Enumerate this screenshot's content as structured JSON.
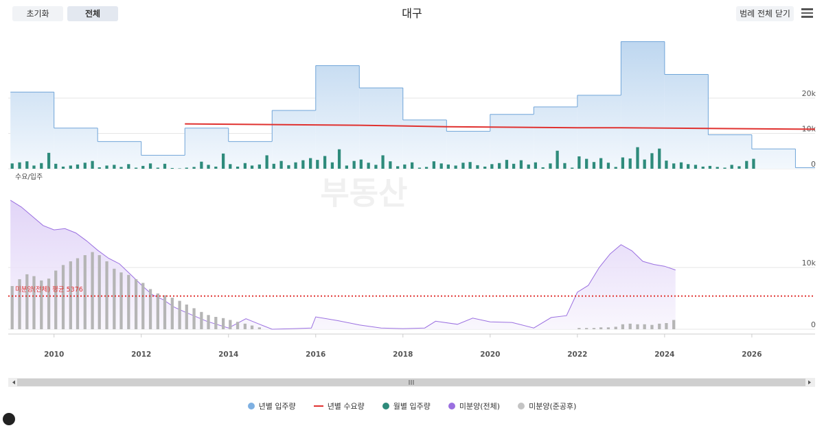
{
  "header": {
    "buttons": [
      "초기화",
      "전체"
    ],
    "legend_toggle": "범례 전체 닫기",
    "watermark": "부동산"
  },
  "chart_data": [
    {
      "type": "combo",
      "title": "대구",
      "ylabel": "수요/입주",
      "xlim": [
        2008.95,
        2027.45
      ],
      "ylim": [
        0,
        40000
      ],
      "yticks": [
        0,
        {
          "value": 10000,
          "label": "10k"
        },
        {
          "value": 20000,
          "label": "20k"
        }
      ],
      "grid": true,
      "series": [
        {
          "name": "년별 입주량",
          "type": "step-area",
          "color": "#6fa4d8",
          "x": [
            2009,
            2010,
            2011,
            2012,
            2013,
            2014,
            2015,
            2016,
            2017,
            2018,
            2019,
            2020,
            2021,
            2022,
            2023,
            2024,
            2025,
            2026,
            2027
          ],
          "values": [
            21700,
            11500,
            7700,
            3800,
            11500,
            7700,
            16500,
            29200,
            22900,
            13800,
            10600,
            15400,
            17500,
            20800,
            36000,
            26700,
            9600,
            5600,
            300
          ]
        },
        {
          "name": "년별 수요량",
          "type": "line",
          "color": "#e0312f",
          "x": [
            2013,
            2014,
            2015,
            2016,
            2017,
            2018,
            2019,
            2020,
            2021,
            2022,
            2023,
            2024,
            2025,
            2026,
            2027.45
          ],
          "values": [
            12700,
            12600,
            12500,
            12400,
            12300,
            12100,
            11900,
            11800,
            11700,
            11600,
            11600,
            11500,
            11400,
            11300,
            11200
          ]
        },
        {
          "name": "월별 입주량",
          "type": "bar",
          "color": "#2e8b7b",
          "x": [
            2009.04,
            2009.21,
            2009.38,
            2009.54,
            2009.71,
            2009.88,
            2010.04,
            2010.21,
            2010.38,
            2010.54,
            2010.71,
            2010.88,
            2011.04,
            2011.21,
            2011.38,
            2011.54,
            2011.71,
            2011.88,
            2012.04,
            2012.21,
            2012.38,
            2012.54,
            2012.71,
            2012.88,
            2013.04,
            2013.21,
            2013.38,
            2013.54,
            2013.71,
            2013.88,
            2014.04,
            2014.21,
            2014.38,
            2014.54,
            2014.71,
            2014.88,
            2015.04,
            2015.21,
            2015.38,
            2015.54,
            2015.71,
            2015.88,
            2016.04,
            2016.21,
            2016.38,
            2016.54,
            2016.71,
            2016.88,
            2017.04,
            2017.21,
            2017.38,
            2017.54,
            2017.71,
            2017.88,
            2018.04,
            2018.21,
            2018.38,
            2018.54,
            2018.71,
            2018.88,
            2019.04,
            2019.21,
            2019.38,
            2019.54,
            2019.71,
            2019.88,
            2020.04,
            2020.21,
            2020.38,
            2020.54,
            2020.71,
            2020.88,
            2021.04,
            2021.21,
            2021.38,
            2021.54,
            2021.71,
            2021.88,
            2022.04,
            2022.21,
            2022.38,
            2022.54,
            2022.71,
            2022.88,
            2023.04,
            2023.21,
            2023.38,
            2023.54,
            2023.71,
            2023.88,
            2024.04,
            2024.21,
            2024.38,
            2024.54,
            2024.71,
            2024.88,
            2025.04,
            2025.21,
            2025.38,
            2025.54,
            2025.71,
            2025.88,
            2026.04
          ],
          "values": [
            1500,
            1800,
            2100,
            900,
            1600,
            4500,
            1400,
            600,
            900,
            1200,
            1700,
            2200,
            400,
            900,
            1100,
            500,
            1300,
            300,
            800,
            1500,
            300,
            1400,
            200,
            100,
            300,
            500,
            2000,
            1100,
            600,
            4300,
            1300,
            600,
            1600,
            900,
            1200,
            3800,
            1400,
            2200,
            1000,
            1800,
            2400,
            3000,
            2500,
            3600,
            1800,
            5500,
            900,
            2200,
            2600,
            1700,
            1100,
            3800,
            2100,
            700,
            1200,
            1800,
            300,
            500,
            2100,
            1500,
            1200,
            900,
            1700,
            1900,
            1000,
            600,
            1300,
            1600,
            2500,
            1400,
            2400,
            1200,
            1800,
            400,
            1500,
            5100,
            1600,
            300,
            3500,
            2800,
            1900,
            3000,
            1700,
            500,
            3200,
            2900,
            6100,
            2600,
            4400,
            5700,
            2300,
            1500,
            1800,
            1300,
            1100,
            600,
            800,
            500,
            300,
            1100,
            700,
            2200,
            2800
          ]
        }
      ]
    },
    {
      "type": "combo",
      "xlim": [
        2008.95,
        2027.45
      ],
      "ylim": [
        0,
        21000
      ],
      "xticks": [
        2010,
        2012,
        2014,
        2016,
        2018,
        2020,
        2022,
        2024,
        2026
      ],
      "yticks": [
        0,
        {
          "value": 10000,
          "label": "10k"
        }
      ],
      "grid": true,
      "average": {
        "value": 5376,
        "label": "미분양(전체) 평균 5376",
        "color": "#e0312f"
      },
      "series": [
        {
          "name": "미분양(전체)",
          "type": "area",
          "color": "#9a6fe0",
          "x": [
            2009.0,
            2009.25,
            2009.5,
            2009.75,
            2010.0,
            2010.25,
            2010.5,
            2010.75,
            2011.0,
            2011.25,
            2011.5,
            2011.75,
            2012.0,
            2012.25,
            2012.5,
            2012.75,
            2013.0,
            2013.5,
            2014.0,
            2014.4,
            2014.75,
            2015.0,
            2015.5,
            2015.9,
            2016.0,
            2016.5,
            2017.0,
            2017.5,
            2018.0,
            2018.5,
            2018.75,
            2019.25,
            2019.6,
            2020.0,
            2020.5,
            2021.0,
            2021.4,
            2021.75,
            2022.0,
            2022.25,
            2022.5,
            2022.75,
            2023.0,
            2023.25,
            2023.5,
            2023.75,
            2024.0,
            2024.25
          ],
          "values": [
            20900,
            19800,
            18300,
            16800,
            16100,
            16300,
            15600,
            14300,
            12800,
            11500,
            10600,
            8900,
            7200,
            5600,
            4800,
            3600,
            2800,
            1300,
            200,
            1700,
            700,
            0,
            100,
            200,
            2000,
            1400,
            700,
            200,
            100,
            200,
            1300,
            800,
            1800,
            1200,
            1100,
            200,
            1900,
            2200,
            6000,
            7100,
            10000,
            12200,
            13700,
            12700,
            11000,
            10500,
            10200,
            9600
          ]
        },
        {
          "name": "미분양(준공후)",
          "type": "bar",
          "color": "#b5b5b5",
          "x": [
            2009.04,
            2009.21,
            2009.38,
            2009.54,
            2009.71,
            2009.88,
            2010.04,
            2010.21,
            2010.38,
            2010.54,
            2010.71,
            2010.88,
            2011.04,
            2011.21,
            2011.38,
            2011.54,
            2011.71,
            2011.88,
            2012.04,
            2012.21,
            2012.38,
            2012.54,
            2012.71,
            2012.88,
            2013.04,
            2013.21,
            2013.38,
            2013.54,
            2013.71,
            2013.88,
            2014.04,
            2014.21,
            2014.38,
            2014.54,
            2014.71,
            2022.04,
            2022.21,
            2022.38,
            2022.54,
            2022.71,
            2022.88,
            2023.04,
            2023.21,
            2023.38,
            2023.54,
            2023.71,
            2023.88,
            2024.04,
            2024.21
          ],
          "values": [
            7000,
            8100,
            8900,
            8600,
            7900,
            8200,
            9500,
            10400,
            11000,
            11500,
            12000,
            12500,
            12000,
            11000,
            9800,
            9200,
            8800,
            8100,
            7500,
            6500,
            5800,
            5500,
            5100,
            4600,
            4000,
            3400,
            2800,
            2300,
            2000,
            1800,
            1500,
            1200,
            900,
            600,
            300,
            200,
            200,
            200,
            300,
            300,
            400,
            800,
            900,
            800,
            800,
            700,
            900,
            1000,
            1500
          ]
        }
      ]
    }
  ]
}
